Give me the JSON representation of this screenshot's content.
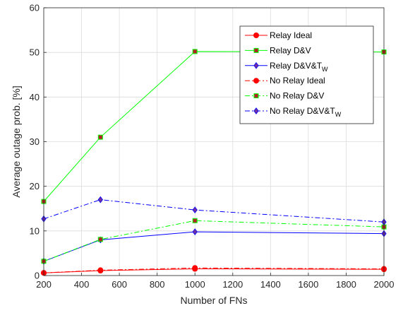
{
  "chart_data": {
    "type": "line",
    "xlabel": "Number of FNs",
    "ylabel": "Average outage prob. [%]",
    "xlim": [
      200,
      2000
    ],
    "ylim": [
      0,
      60
    ],
    "xticks": [
      "200",
      "400",
      "600",
      "800",
      "1000",
      "1200",
      "1400",
      "1600",
      "1800",
      "2000"
    ],
    "yticks": [
      "0",
      "10",
      "20",
      "30",
      "40",
      "50",
      "60"
    ],
    "grid": true,
    "legend_position": "top-right",
    "x": [
      200,
      500,
      1000,
      2000
    ],
    "series": [
      {
        "name": "Relay Ideal",
        "name_main": "Relay Ideal",
        "name_sub": "",
        "values": [
          0.6,
          1.1,
          1.5,
          1.4
        ],
        "color": "#ff0000",
        "dash": "solid",
        "marker": "circle",
        "marker_fill": "#ff0000"
      },
      {
        "name": "Relay D&V",
        "name_main": "Relay D&V",
        "name_sub": "",
        "values": [
          16.6,
          31.0,
          50.2,
          50.1
        ],
        "color": "#00ff00",
        "dash": "solid",
        "marker": "square",
        "marker_fill": "#b22222"
      },
      {
        "name": "Relay D&V&TW",
        "name_main": "Relay D&V&T",
        "name_sub": "W",
        "values": [
          3.2,
          8.0,
          9.8,
          9.4
        ],
        "color": "#0000ff",
        "dash": "solid",
        "marker": "diamond",
        "marker_fill": "#7030a0"
      },
      {
        "name": "No Relay Ideal",
        "name_main": "No Relay Ideal",
        "name_sub": "",
        "values": [
          0.6,
          1.2,
          1.7,
          1.5
        ],
        "color": "#ff0000",
        "dash": "dashdot",
        "marker": "circle",
        "marker_fill": "#ff0000"
      },
      {
        "name": "No Relay D&V",
        "name_main": "No Relay D&V",
        "name_sub": "",
        "values": [
          3.2,
          8.1,
          12.3,
          10.9
        ],
        "color": "#00ff00",
        "dash": "dashdot",
        "marker": "square",
        "marker_fill": "#b22222"
      },
      {
        "name": "No Relay D&V&TW",
        "name_main": "No Relay D&V&T",
        "name_sub": "W",
        "values": [
          12.7,
          17.0,
          14.7,
          12.0
        ],
        "color": "#0000ff",
        "dash": "dashdot",
        "marker": "diamond",
        "marker_fill": "#7030a0"
      }
    ]
  }
}
